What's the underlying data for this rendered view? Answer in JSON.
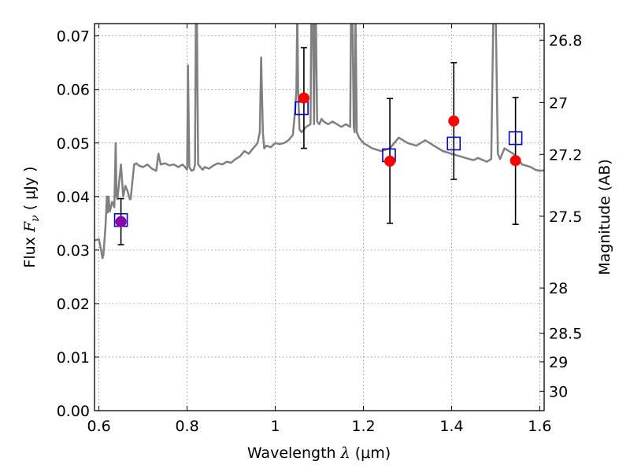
{
  "chart_data": {
    "type": "scatter",
    "xlabel_prefix": "Wavelength",
    "xlabel_symbol": "λ",
    "xlabel_unit": "(μm)",
    "ylabel_prefix": "Flux",
    "ylabel_symbol": "F",
    "ylabel_subscript": "ν",
    "ylabel_unit": "( μJy )",
    "y2label": "Magnitude (AB)",
    "xlim": [
      0.59,
      1.61
    ],
    "ylim": [
      0.0,
      0.0723
    ],
    "grid": true,
    "x_ticks": [
      0.6,
      0.8,
      1.0,
      1.2,
      1.4,
      1.6
    ],
    "x_tick_labels": [
      "0.6",
      "0.8",
      "1",
      "1.2",
      "1.4",
      "1.6"
    ],
    "y_ticks": [
      0.0,
      0.01,
      0.02,
      0.03,
      0.04,
      0.05,
      0.06,
      0.07
    ],
    "y_tick_labels": [
      "0.00",
      "0.01",
      "0.02",
      "0.03",
      "0.04",
      "0.05",
      "0.06",
      "0.07"
    ],
    "mag_ticks": [
      26.8,
      27,
      27.2,
      27.5,
      28,
      28.5,
      29,
      30
    ],
    "mag_tick_labels": [
      "26.8",
      "27",
      "27.2",
      "27.5",
      "28",
      "28.5",
      "29",
      "30"
    ],
    "colors": {
      "model": "#808080",
      "observed": "#ff0000",
      "model_band": "#0000cc",
      "overlap": "#8800aa",
      "errorbar": "#000000",
      "grid": "#888888"
    },
    "model_spectrum": {
      "x": [
        0.59,
        0.6,
        0.605,
        0.608,
        0.61,
        0.612,
        0.615,
        0.618,
        0.62,
        0.622,
        0.625,
        0.63,
        0.635,
        0.638,
        0.64,
        0.642,
        0.645,
        0.65,
        0.655,
        0.66,
        0.665,
        0.67,
        0.672,
        0.675,
        0.678,
        0.68,
        0.685,
        0.69,
        0.7,
        0.71,
        0.72,
        0.73,
        0.735,
        0.74,
        0.75,
        0.76,
        0.77,
        0.78,
        0.79,
        0.8,
        0.802,
        0.805,
        0.81,
        0.815,
        0.818,
        0.82,
        0.822,
        0.825,
        0.83,
        0.835,
        0.84,
        0.85,
        0.86,
        0.87,
        0.88,
        0.89,
        0.9,
        0.91,
        0.92,
        0.93,
        0.94,
        0.95,
        0.96,
        0.965,
        0.968,
        0.972,
        0.975,
        0.98,
        0.99,
        1.0,
        1.01,
        1.02,
        1.03,
        1.04,
        1.045,
        1.048,
        1.05,
        1.052,
        1.055,
        1.06,
        1.065,
        1.07,
        1.08,
        1.082,
        1.085,
        1.088,
        1.09,
        1.092,
        1.095,
        1.1,
        1.105,
        1.11,
        1.12,
        1.13,
        1.14,
        1.15,
        1.16,
        1.17,
        1.172,
        1.175,
        1.178,
        1.18,
        1.182,
        1.185,
        1.19,
        1.2,
        1.22,
        1.24,
        1.26,
        1.28,
        1.3,
        1.32,
        1.34,
        1.36,
        1.38,
        1.4,
        1.42,
        1.44,
        1.45,
        1.46,
        1.48,
        1.49,
        1.495,
        1.5,
        1.505,
        1.51,
        1.52,
        1.54,
        1.56,
        1.58,
        1.59,
        1.6,
        1.61
      ],
      "y": [
        0.0318,
        0.032,
        0.03,
        0.0285,
        0.029,
        0.031,
        0.0345,
        0.04,
        0.037,
        0.04,
        0.0372,
        0.039,
        0.038,
        0.05,
        0.04,
        0.0395,
        0.042,
        0.046,
        0.04,
        0.042,
        0.041,
        0.0395,
        0.0395,
        0.042,
        0.0445,
        0.046,
        0.0462,
        0.0458,
        0.0455,
        0.046,
        0.0452,
        0.0448,
        0.048,
        0.046,
        0.0462,
        0.0458,
        0.046,
        0.0455,
        0.046,
        0.045,
        0.0645,
        0.0455,
        0.0448,
        0.045,
        0.046,
        0.075,
        0.075,
        0.046,
        0.0455,
        0.045,
        0.0455,
        0.0452,
        0.0458,
        0.0462,
        0.046,
        0.0465,
        0.0463,
        0.047,
        0.0475,
        0.0485,
        0.048,
        0.049,
        0.05,
        0.052,
        0.066,
        0.052,
        0.049,
        0.0495,
        0.0492,
        0.05,
        0.0498,
        0.05,
        0.0505,
        0.0515,
        0.056,
        0.06,
        0.075,
        0.06,
        0.0525,
        0.052,
        0.0525,
        0.053,
        0.0535,
        0.075,
        0.075,
        0.0535,
        0.075,
        0.075,
        0.054,
        0.0535,
        0.0545,
        0.054,
        0.0535,
        0.054,
        0.0535,
        0.053,
        0.0535,
        0.053,
        0.075,
        0.075,
        0.053,
        0.052,
        0.075,
        0.052,
        0.051,
        0.05,
        0.049,
        0.0485,
        0.049,
        0.051,
        0.05,
        0.0495,
        0.0505,
        0.0495,
        0.0485,
        0.048,
        0.0475,
        0.047,
        0.0468,
        0.0472,
        0.0465,
        0.047,
        0.075,
        0.075,
        0.048,
        0.047,
        0.049,
        0.048,
        0.046,
        0.0455,
        0.045,
        0.0448,
        0.0449
      ]
    },
    "observed": {
      "x": [
        0.65,
        1.065,
        1.26,
        1.405,
        1.545
      ],
      "y": [
        0.0353,
        0.0584,
        0.0466,
        0.0541,
        0.0467
      ],
      "err_lo": [
        0.031,
        0.049,
        0.035,
        0.0432,
        0.0348
      ],
      "err_hi": [
        0.0396,
        0.0678,
        0.0583,
        0.065,
        0.0585
      ]
    },
    "model_bands": {
      "x": [
        0.65,
        1.06,
        1.258,
        1.405,
        1.545
      ],
      "y": [
        0.0356,
        0.0565,
        0.0477,
        0.0499,
        0.0509
      ]
    },
    "overlap_markers": {
      "x": [
        0.65
      ],
      "y": [
        0.0353
      ]
    }
  }
}
